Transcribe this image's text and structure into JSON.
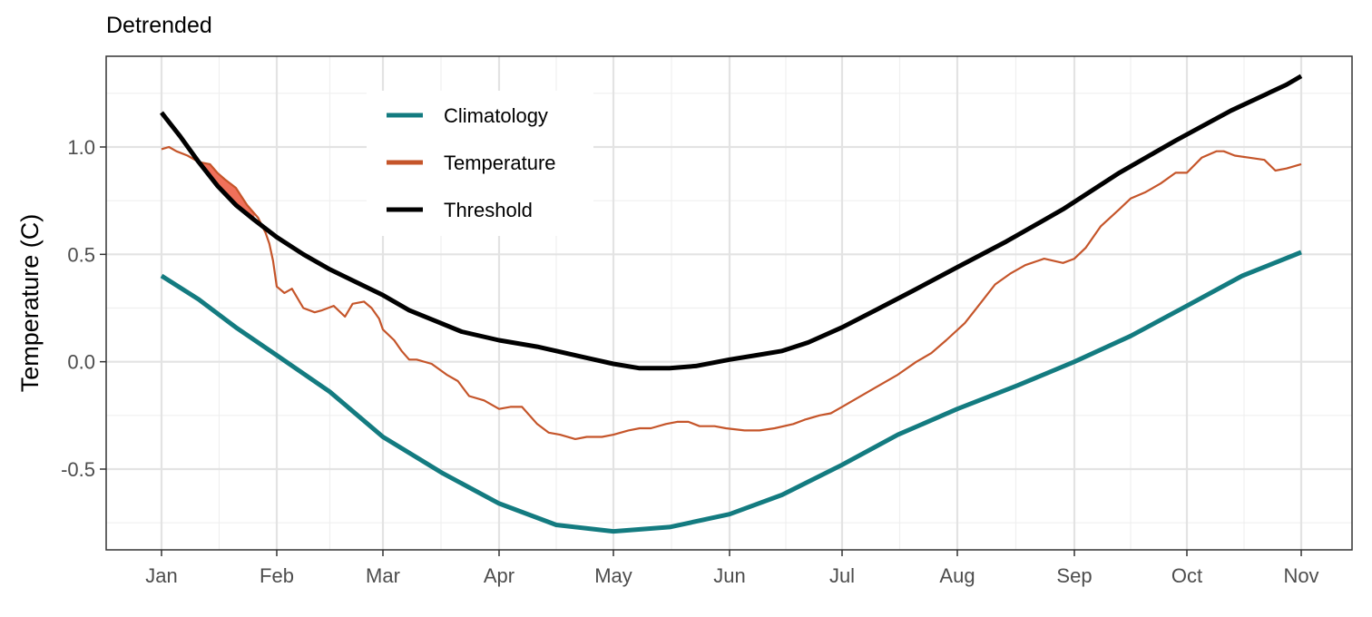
{
  "chart_data": {
    "type": "line",
    "title": "Detrended",
    "xlabel": "",
    "ylabel": "Temperature (C)",
    "ylim": [
      -0.88,
      1.42
    ],
    "x_tick_labels": [
      "Jan",
      "Feb",
      "Mar",
      "Apr",
      "May",
      "Jun",
      "Jul",
      "Aug",
      "Sep",
      "Oct",
      "Nov"
    ],
    "y_ticks": [
      1.0,
      0.5,
      0.0,
      -0.5
    ],
    "y_tick_labels": [
      "1.0",
      "0.5",
      "0.0",
      "-0.5"
    ],
    "grid": true,
    "legend_position": "top-left inside",
    "x_unit": "month (day offset from 1 Jan)",
    "series": [
      {
        "name": "Climatology",
        "color": "#137B80",
        "x": [
          0,
          10,
          20,
          31,
          45,
          59,
          75,
          90,
          105,
          120,
          135,
          151,
          165,
          181,
          196,
          212,
          228,
          243,
          258,
          273,
          288,
          304
        ],
        "values": [
          0.4,
          0.29,
          0.16,
          0.03,
          -0.14,
          -0.35,
          -0.52,
          -0.66,
          -0.76,
          -0.79,
          -0.77,
          -0.71,
          -0.62,
          -0.48,
          -0.34,
          -0.22,
          -0.11,
          0.0,
          0.12,
          0.26,
          0.4,
          0.51
        ]
      },
      {
        "name": "Temperature",
        "color": "#C5552A",
        "x": [
          0,
          2,
          4,
          7,
          10,
          13,
          15,
          17,
          20,
          23,
          26,
          28,
          29,
          30,
          31,
          33,
          35,
          38,
          41,
          43,
          46,
          49,
          51,
          54,
          56,
          58,
          59,
          62,
          64,
          66,
          68,
          72,
          76,
          79,
          82,
          86,
          90,
          93,
          96,
          100,
          103,
          106,
          110,
          113,
          117,
          120,
          124,
          127,
          130,
          134,
          137,
          140,
          143,
          147,
          150,
          155,
          159,
          163,
          168,
          171,
          175,
          178,
          181,
          185,
          190,
          196,
          201,
          205,
          209,
          214,
          218,
          222,
          226,
          230,
          235,
          240,
          243,
          246,
          250,
          255,
          258,
          262,
          266,
          270,
          273,
          277,
          281,
          283,
          286,
          290,
          294,
          297,
          300,
          304
        ],
        "values": [
          0.99,
          1.0,
          0.98,
          0.96,
          0.93,
          0.92,
          0.88,
          0.85,
          0.81,
          0.73,
          0.67,
          0.6,
          0.55,
          0.47,
          0.35,
          0.32,
          0.34,
          0.25,
          0.23,
          0.24,
          0.26,
          0.21,
          0.27,
          0.28,
          0.25,
          0.2,
          0.15,
          0.1,
          0.05,
          0.01,
          0.01,
          -0.01,
          -0.06,
          -0.09,
          -0.16,
          -0.18,
          -0.22,
          -0.21,
          -0.21,
          -0.29,
          -0.33,
          -0.34,
          -0.36,
          -0.35,
          -0.35,
          -0.34,
          -0.32,
          -0.31,
          -0.31,
          -0.29,
          -0.28,
          -0.28,
          -0.3,
          -0.3,
          -0.31,
          -0.32,
          -0.32,
          -0.31,
          -0.29,
          -0.27,
          -0.25,
          -0.24,
          -0.21,
          -0.17,
          -0.12,
          -0.06,
          0.0,
          0.04,
          0.1,
          0.18,
          0.27,
          0.36,
          0.41,
          0.45,
          0.48,
          0.46,
          0.48,
          0.53,
          0.63,
          0.71,
          0.76,
          0.79,
          0.83,
          0.88,
          0.88,
          0.95,
          0.98,
          0.98,
          0.96,
          0.95,
          0.94,
          0.89,
          0.9,
          0.92
        ],
        "stroke_width": 2
      },
      {
        "name": "Threshold",
        "color": "#000000",
        "x": [
          0,
          5,
          10,
          15,
          20,
          25,
          31,
          38,
          45,
          52,
          59,
          66,
          73,
          80,
          90,
          100,
          105,
          110,
          115,
          120,
          127,
          135,
          142,
          151,
          158,
          165,
          172,
          181,
          190,
          200,
          212,
          225,
          240,
          255,
          270,
          285,
          300,
          304
        ],
        "values": [
          1.16,
          1.05,
          0.93,
          0.82,
          0.73,
          0.66,
          0.58,
          0.5,
          0.43,
          0.37,
          0.31,
          0.24,
          0.19,
          0.14,
          0.1,
          0.07,
          0.05,
          0.03,
          0.01,
          -0.01,
          -0.03,
          -0.03,
          -0.02,
          0.01,
          0.03,
          0.05,
          0.09,
          0.16,
          0.24,
          0.33,
          0.44,
          0.56,
          0.71,
          0.88,
          1.03,
          1.17,
          1.29,
          1.33
        ]
      }
    ],
    "event_fill": {
      "color": "#F0705A",
      "x_range": [
        10,
        25
      ]
    }
  }
}
